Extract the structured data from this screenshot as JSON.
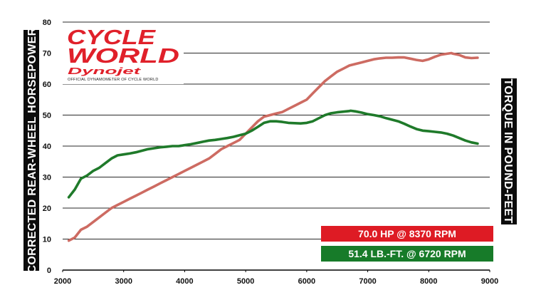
{
  "chart_data": {
    "type": "line",
    "x_ticks": [
      2000,
      3000,
      4000,
      5000,
      6000,
      7000,
      8000,
      9000
    ],
    "y_ticks": [
      0,
      10,
      20,
      30,
      40,
      50,
      60,
      70,
      80
    ],
    "xlim": [
      2000,
      9000
    ],
    "ylim": [
      0,
      80
    ],
    "ylabel_left": "CORRECTED REAR-WHEEL HORSEPOWER",
    "ylabel_right": "TORQUE IN POUND-FEET",
    "grid": "horizontal",
    "series": [
      {
        "name": "70.0 HP @ 8370 RPM",
        "color": "#cd6b62",
        "legend_color": "#de1b24",
        "x": [
          2100,
          2200,
          2300,
          2400,
          2500,
          2600,
          2700,
          2800,
          2900,
          3000,
          3100,
          3200,
          3300,
          3400,
          3500,
          3600,
          3700,
          3800,
          3900,
          4000,
          4100,
          4200,
          4300,
          4400,
          4500,
          4600,
          4700,
          4800,
          4900,
          5000,
          5100,
          5200,
          5300,
          5400,
          5500,
          5600,
          5700,
          5800,
          5900,
          6000,
          6100,
          6200,
          6300,
          6400,
          6500,
          6600,
          6700,
          6800,
          6900,
          7000,
          7100,
          7200,
          7300,
          7400,
          7500,
          7600,
          7700,
          7800,
          7900,
          8000,
          8100,
          8200,
          8300,
          8370,
          8400,
          8500,
          8600,
          8700,
          8800
        ],
        "values": [
          9.5,
          10.5,
          13,
          14,
          15.5,
          17,
          18.5,
          20,
          21,
          22,
          23,
          24,
          25,
          26,
          27,
          28,
          29,
          30,
          31,
          32,
          33,
          34,
          35,
          36,
          37.5,
          39,
          40,
          41,
          42,
          44,
          46,
          48,
          49.5,
          50,
          50.5,
          51,
          52,
          53,
          54,
          55,
          57,
          59,
          61,
          62.5,
          64,
          65,
          66,
          66.5,
          67,
          67.5,
          68,
          68.3,
          68.5,
          68.5,
          68.6,
          68.6,
          68.2,
          67.8,
          67.5,
          68,
          68.8,
          69.5,
          69.8,
          70,
          69.8,
          69.4,
          68.6,
          68.4,
          68.5
        ]
      },
      {
        "name": "51.4 LB.-FT. @ 6720 RPM",
        "color": "#1f7a2a",
        "legend_color": "#177b29",
        "x": [
          2100,
          2200,
          2300,
          2400,
          2500,
          2600,
          2700,
          2800,
          2900,
          3000,
          3100,
          3200,
          3300,
          3400,
          3500,
          3600,
          3700,
          3800,
          3900,
          4000,
          4100,
          4200,
          4300,
          4400,
          4500,
          4600,
          4700,
          4800,
          4900,
          5000,
          5100,
          5200,
          5300,
          5400,
          5500,
          5600,
          5700,
          5800,
          5900,
          6000,
          6100,
          6200,
          6300,
          6400,
          6500,
          6600,
          6700,
          6720,
          6800,
          6900,
          7000,
          7100,
          7200,
          7300,
          7400,
          7500,
          7600,
          7700,
          7800,
          7900,
          8000,
          8100,
          8200,
          8300,
          8400,
          8500,
          8600,
          8700,
          8800
        ],
        "values": [
          23.5,
          26,
          29.5,
          30.5,
          32,
          33,
          34.5,
          36,
          37,
          37.3,
          37.6,
          38,
          38.5,
          39,
          39.3,
          39.6,
          39.8,
          40,
          40,
          40.3,
          40.6,
          41,
          41.4,
          41.8,
          42,
          42.3,
          42.6,
          43,
          43.5,
          44,
          45,
          46.2,
          47.5,
          48,
          48,
          47.8,
          47.5,
          47.4,
          47.3,
          47.5,
          48,
          49,
          50,
          50.6,
          50.9,
          51.1,
          51.3,
          51.4,
          51.2,
          50.8,
          50.3,
          50,
          49.6,
          49,
          48.5,
          48,
          47.2,
          46.3,
          45.5,
          45,
          44.8,
          44.6,
          44.4,
          44,
          43.4,
          42.6,
          41.8,
          41.2,
          40.8
        ]
      }
    ]
  },
  "logo": {
    "line1": "CYCLE",
    "line2": "WORLD",
    "sub": "Dynojet",
    "tagline": "OFFICIAL DYNAMOMETER OF CYCLE WORLD"
  },
  "colors": {
    "grid": "#2a2a2a",
    "axis_box": "#0c0c0c",
    "logo_red": "#e0202a"
  }
}
